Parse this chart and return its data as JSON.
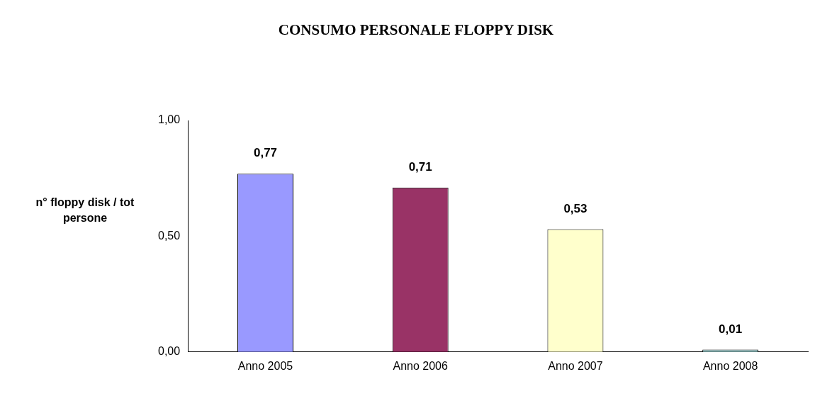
{
  "chart_data": {
    "type": "bar",
    "title": "CONSUMO PERSONALE FLOPPY DISK",
    "ylabel": "n° floppy disk / tot persone",
    "categories": [
      "Anno 2005",
      "Anno 2006",
      "Anno 2007",
      "Anno 2008"
    ],
    "values": [
      0.77,
      0.71,
      0.53,
      0.01
    ],
    "colors": [
      "#9999ff",
      "#993366",
      "#ffffcc",
      "#99cccc"
    ],
    "value_labels": [
      "0,77",
      "0,71",
      "0,53",
      "0,01"
    ],
    "ylim": [
      0,
      1
    ],
    "yticks": [
      {
        "value": 0,
        "label": "0,00"
      },
      {
        "value": 0.5,
        "label": "0,50"
      },
      {
        "value": 1,
        "label": "1,00"
      }
    ],
    "grid": false,
    "legend": false
  }
}
